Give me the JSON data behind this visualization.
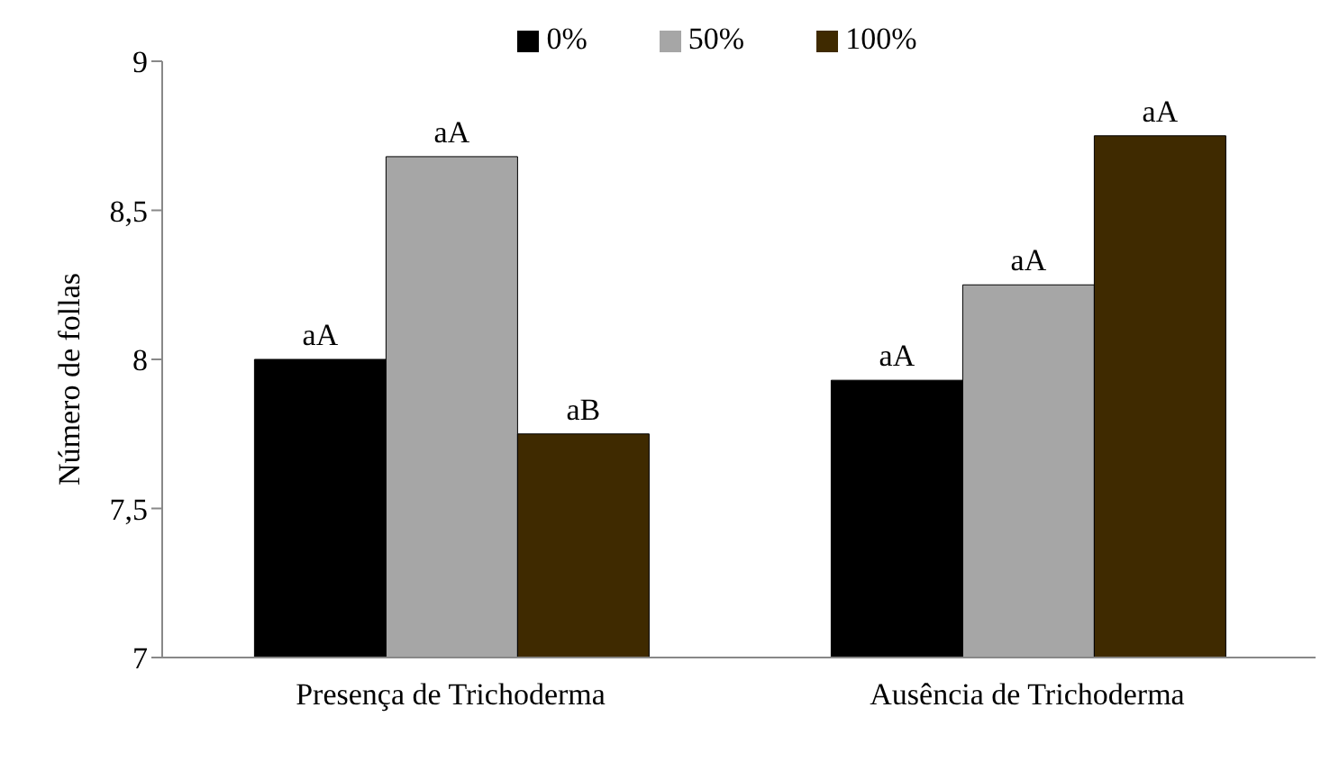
{
  "chart_data": {
    "type": "bar",
    "ylabel": "Número de follas",
    "categories": [
      "Presença de Trichoderma",
      "Ausência de Trichoderma"
    ],
    "series": [
      {
        "name": "0%",
        "color": "#000000",
        "values": [
          8.0,
          7.93
        ],
        "value_labels": [
          "aA",
          "aA"
        ]
      },
      {
        "name": "50%",
        "color": "#a6a6a6",
        "values": [
          8.68,
          8.25
        ],
        "value_labels": [
          "aA",
          "aA"
        ]
      },
      {
        "name": "100%",
        "color": "#3f2a00",
        "values": [
          7.75,
          8.75
        ],
        "value_labels": [
          "aB",
          "aA"
        ]
      }
    ],
    "ylim": [
      7,
      9
    ],
    "yticks": [
      {
        "value": 7,
        "label": "7"
      },
      {
        "value": 7.5,
        "label": "7,5"
      },
      {
        "value": 8,
        "label": "8"
      },
      {
        "value": 8.5,
        "label": "8,5"
      },
      {
        "value": 9,
        "label": "9"
      }
    ],
    "grid": false,
    "legend": "top"
  }
}
